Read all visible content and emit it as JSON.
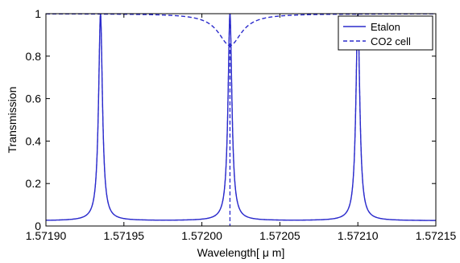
{
  "chart_data": {
    "type": "line",
    "xlabel": "Wavelength[ μ m]",
    "ylabel": "Transmission",
    "xlim": [
      1.5719,
      1.57215
    ],
    "ylim": [
      0,
      1
    ],
    "xticks": [
      "1.57190",
      "1.57195",
      "1.57200",
      "1.57205",
      "1.57210",
      "1.57215"
    ],
    "yticks": [
      "0",
      "0.2",
      "0.4",
      "0.6",
      "0.8",
      "1"
    ],
    "grid": false,
    "legend_position": "top-right",
    "colors": {
      "series": "#2b2bcc",
      "axis": "#000000"
    },
    "series": [
      {
        "name": "Etalon",
        "style": "solid",
        "peaks": [
          1.571935,
          1.572018,
          1.5721
        ],
        "peak_transmission": 1.0,
        "min_transmission": 0.025,
        "peak_hwhm": 1.5e-06
      },
      {
        "name": "CO2 cell",
        "style": "dashed",
        "baseline": 1.0,
        "absorption_center": 1.572018,
        "absorption_min": 0.85,
        "absorption_hwhm": 9e-06,
        "notch_center": 1.572018
      }
    ]
  }
}
